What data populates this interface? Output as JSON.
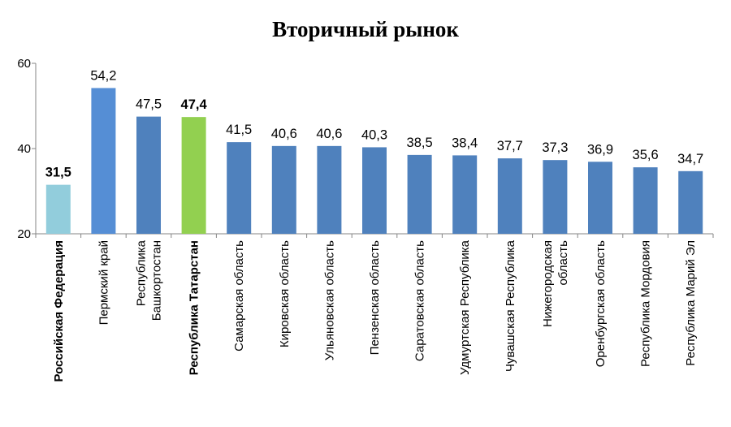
{
  "chart_data": {
    "type": "bar",
    "title": "Вторичный рынок",
    "xlabel": "",
    "ylabel": "",
    "ylim": [
      20,
      60
    ],
    "yticks": [
      "20",
      "40",
      "60"
    ],
    "grid": false,
    "legend": "none",
    "categories": [
      [
        "Российская Федерация"
      ],
      [
        "Пермский край"
      ],
      [
        "Республика",
        "Башкортостан"
      ],
      [
        "Республика Татарстан"
      ],
      [
        "Самарская область"
      ],
      [
        "Кировская область"
      ],
      [
        "Ульяновская область"
      ],
      [
        "Пензенская область"
      ],
      [
        "Саратовская область"
      ],
      [
        "Удмуртская Республика"
      ],
      [
        "Чувашская Республика"
      ],
      [
        "Нижегородская",
        "область"
      ],
      [
        "Оренбургская область"
      ],
      [
        "Республика Мордовия"
      ],
      [
        "Республика Марий Эл"
      ]
    ],
    "values": [
      31.5,
      54.2,
      47.5,
      47.4,
      41.5,
      40.6,
      40.6,
      40.3,
      38.5,
      38.4,
      37.7,
      37.3,
      36.9,
      35.6,
      34.7
    ],
    "value_labels": [
      "31,5",
      "54,2",
      "47,5",
      "47,4",
      "41,5",
      "40,6",
      "40,6",
      "40,3",
      "38,5",
      "38,4",
      "37,7",
      "37,3",
      "36,9",
      "35,6",
      "34,7"
    ],
    "bar_colors": [
      "#92cddc",
      "#558ed5",
      "#4f81bd",
      "#92d050",
      "#4f81bd",
      "#4f81bd",
      "#4f81bd",
      "#4f81bd",
      "#4f81bd",
      "#4f81bd",
      "#4f81bd",
      "#4f81bd",
      "#4f81bd",
      "#4f81bd",
      "#4f81bd"
    ],
    "bold_indices": [
      0,
      3
    ],
    "axis_color": "#868686"
  }
}
